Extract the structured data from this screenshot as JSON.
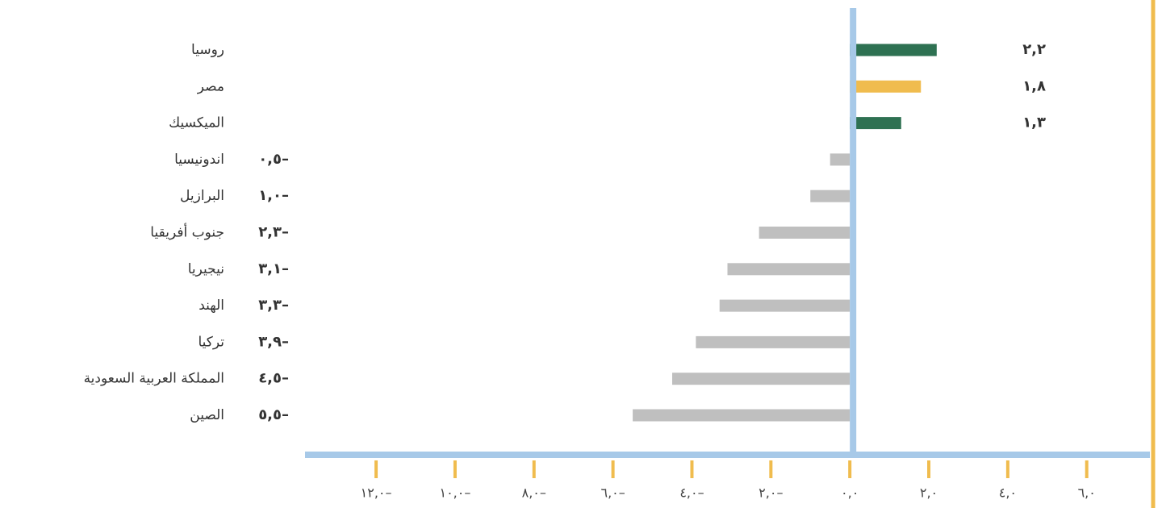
{
  "chart_data": {
    "type": "hbar",
    "categories": [
      "روسيا",
      "مصر",
      "الميكسيك",
      "اندونيسيا",
      "البرازيل",
      "جنوب أفريقيا",
      "نيجيريا",
      "الهند",
      "تركيا",
      "المملكة العربية السعودية",
      "الصين"
    ],
    "values": [
      2.2,
      1.8,
      1.3,
      -0.5,
      -1.0,
      -2.3,
      -3.1,
      -3.3,
      -3.9,
      -4.5,
      -5.5
    ],
    "value_labels": [
      "٢,٢",
      "١,٨",
      "١,٣",
      "٠,٥–",
      "١,٠–",
      "٢,٣–",
      "٣,١–",
      "٣,٣–",
      "٣,٩–",
      "٤,٥–",
      "٥,٥–"
    ],
    "colors": [
      "#2e7152",
      "#f0bc4e",
      "#2e7152",
      "#bfbfbf",
      "#bfbfbf",
      "#bfbfbf",
      "#bfbfbf",
      "#bfbfbf",
      "#bfbfbf",
      "#bfbfbf",
      "#bfbfbf"
    ],
    "xlim": [
      -13.8,
      7.6
    ],
    "xticks": [
      {
        "value": -12,
        "label": "١٢,٠–"
      },
      {
        "value": -10,
        "label": "١٠,٠–"
      },
      {
        "value": -8,
        "label": "٨,٠–"
      },
      {
        "value": -6,
        "label": "٦,٠–"
      },
      {
        "value": -4,
        "label": "٤,٠–"
      },
      {
        "value": -2,
        "label": "٢,٠–"
      },
      {
        "value": 0,
        "label": "٠,٠"
      },
      {
        "value": 2,
        "label": "٢,٠"
      },
      {
        "value": 4,
        "label": "٤,٠"
      },
      {
        "value": 6,
        "label": "٦,٠"
      }
    ],
    "axis_color": "#a7c9e8",
    "tick_color": "#f0bc4e"
  }
}
